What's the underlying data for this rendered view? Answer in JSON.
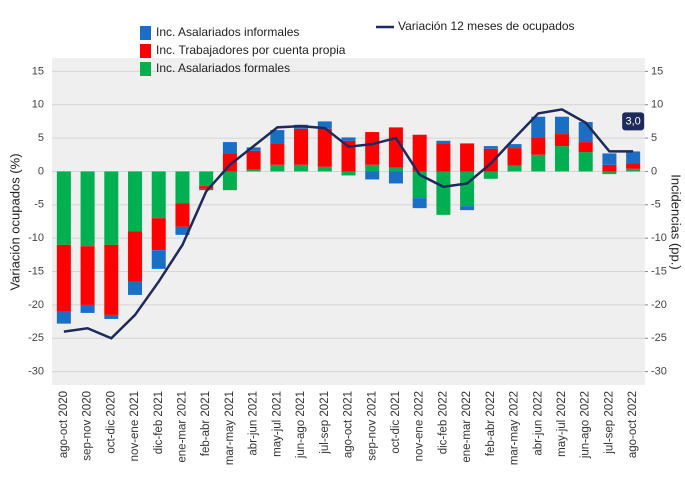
{
  "chart_data": {
    "type": "bar",
    "categories": [
      "ago-oct 2020",
      "sep-nov 2020",
      "oct-dic 2020",
      "nov-ene 2021",
      "dic-feb 2021",
      "ene-mar 2021",
      "feb-abr 2021",
      "mar-may 2021",
      "abr-jun 2021",
      "may-jul 2021",
      "jun-ago 2021",
      "jul-sep 2021",
      "ago-oct 2021",
      "sep-nov 2021",
      "oct-dic 2021",
      "nov-ene 2022",
      "dic-feb 2022",
      "ene-mar 2022",
      "feb-abr 2022",
      "mar-may 2022",
      "abr-jun 2022",
      "may-jul 2022",
      "jun-ago 2022",
      "jul-sep 2022",
      "ago-oct 2022"
    ],
    "series": [
      {
        "name": "Inc. Asalariados formales",
        "color": "#00b050",
        "axis": "y2",
        "values": [
          -11,
          -11.2,
          -11,
          -9,
          -7,
          -4.8,
          -2.2,
          -2.8,
          0.3,
          1,
          1,
          0.7,
          -0.6,
          1,
          0.6,
          -4,
          -6.5,
          -5.2,
          -1.1,
          0.9,
          2.5,
          3.8,
          2.9,
          -0.4,
          0.4
        ]
      },
      {
        "name": "Inc. Trabajadores por cuenta propia",
        "color": "#ff0000",
        "axis": "y2",
        "values": [
          -10,
          -8.8,
          -10.5,
          -7.5,
          -4.8,
          -3.5,
          -0.4,
          2.7,
          2.8,
          3.2,
          5.4,
          5.7,
          4.6,
          4.9,
          6,
          5.5,
          4.2,
          4.2,
          3.4,
          2.6,
          2.6,
          1.8,
          1.5,
          1,
          0.8
        ]
      },
      {
        "name": "Inc. Asalariados informales",
        "color": "#1a6fc4",
        "axis": "y2",
        "values": [
          -1.8,
          -1.2,
          -0.6,
          -2,
          -2.8,
          -1.2,
          -0.2,
          1.7,
          0.5,
          2,
          0.6,
          1.1,
          0.5,
          -1.2,
          -1.8,
          -1.5,
          0.4,
          -0.6,
          0.4,
          0.6,
          3.1,
          2.6,
          3,
          1.7,
          1.8
        ]
      },
      {
        "name": "Variación 12 meses de ocupados",
        "color": "#1f2a5c",
        "type": "line",
        "values": [
          -24,
          -23.5,
          -25,
          -21.5,
          -16.5,
          -11,
          -3,
          1,
          3.8,
          6.6,
          6.8,
          6.5,
          3.7,
          4.1,
          5,
          -0.5,
          -2.3,
          -1.8,
          1.2,
          5,
          8.7,
          9.3,
          7.3,
          3,
          3.0
        ],
        "value_labels": [
          null,
          null,
          null,
          null,
          null,
          null,
          null,
          null,
          null,
          null,
          null,
          null,
          null,
          null,
          null,
          null,
          null,
          null,
          null,
          null,
          null,
          null,
          null,
          null,
          "3,0"
        ]
      }
    ],
    "y_label": "Variación ocupados (%)",
    "y2_label": "Incidencias (pp.)",
    "ylim": [
      -32,
      17
    ],
    "yticks": [
      -30,
      -25,
      -20,
      -15,
      -10,
      -5,
      0,
      5,
      10,
      15
    ],
    "y2lim": [
      -32,
      17
    ],
    "y2ticks": [
      -30,
      -25,
      -20,
      -15,
      -10,
      -5,
      0,
      5,
      10,
      15
    ],
    "grid": true
  }
}
